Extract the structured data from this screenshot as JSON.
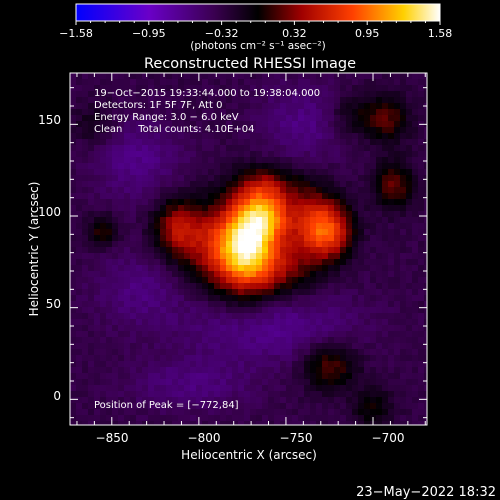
{
  "colorbar": {
    "tick_labels": [
      "−1.58",
      "−0.95",
      "−0.32",
      "0.32",
      "0.95",
      "1.58"
    ],
    "units_text": "(photons cm⁻² s⁻¹ asec⁻²)",
    "range": [
      -1.58,
      1.58
    ],
    "colors": {
      "low": "#0000ff",
      "mid_low": "#b000b0",
      "mid": "#000000",
      "mid_high": "#ff3300",
      "high_orange": "#ffb000",
      "high": "#ffffff"
    }
  },
  "title": "Reconstructed RHESSI Image",
  "info": {
    "line1": "19−Oct−2015 19:33:44.000 to 19:38:04.000",
    "line2": "Detectors: 1F 5F 7F, Att 0",
    "line3": "Energy Range: 3.0 − 6.0 keV",
    "line4": "Clean     Total counts: 4.10E+04"
  },
  "peak_text": "Position of Peak = [−772,84]",
  "footer_date": "23−May−2022 18:32",
  "chart_data": {
    "type": "heatmap",
    "title": "Reconstructed RHESSI Image",
    "xlabel": "Heliocentric X (arcsec)",
    "ylabel": "Heliocentric Y (arcsec)",
    "xlim": [
      -874,
      -669
    ],
    "ylim": [
      -14,
      178
    ],
    "x_ticks": [
      -850,
      -800,
      -750,
      -700
    ],
    "y_ticks": [
      0,
      50,
      100,
      150
    ],
    "x_tick_labels": [
      "−850",
      "−800",
      "−750",
      "−700"
    ],
    "y_tick_labels": [
      "0",
      "50",
      "100",
      "150"
    ],
    "peak": [
      -772,
      84
    ],
    "colorbar_range": [
      -1.58,
      1.58
    ],
    "sources": [
      {
        "x": -772,
        "y": 84,
        "amp": 1.58,
        "sx": 11,
        "sy": 18
      },
      {
        "x": -760,
        "y": 100,
        "amp": 0.9,
        "sx": 10,
        "sy": 10
      },
      {
        "x": -790,
        "y": 82,
        "amp": 0.7,
        "sx": 12,
        "sy": 16
      },
      {
        "x": -812,
        "y": 93,
        "amp": 0.75,
        "sx": 10,
        "sy": 12
      },
      {
        "x": -752,
        "y": 72,
        "amp": 0.55,
        "sx": 12,
        "sy": 12
      },
      {
        "x": -736,
        "y": 96,
        "amp": 0.62,
        "sx": 9,
        "sy": 15
      },
      {
        "x": -724,
        "y": 92,
        "amp": 0.95,
        "sx": 9,
        "sy": 11
      },
      {
        "x": -725,
        "y": 18,
        "amp": 0.55,
        "sx": 11,
        "sy": 9
      },
      {
        "x": -758,
        "y": 115,
        "amp": 0.3,
        "sx": 14,
        "sy": 10
      },
      {
        "x": -688,
        "y": 117,
        "amp": 0.55,
        "sx": 8,
        "sy": 9
      },
      {
        "x": -692,
        "y": 153,
        "amp": 0.5,
        "sx": 9,
        "sy": 9
      },
      {
        "x": -712,
        "y": 155,
        "amp": 0.3,
        "sx": 9,
        "sy": 8
      },
      {
        "x": -855,
        "y": 92,
        "amp": 0.45,
        "sx": 6,
        "sy": 6
      },
      {
        "x": -762,
        "y": 118,
        "amp": 0.2,
        "sx": 10,
        "sy": 6
      },
      {
        "x": -860,
        "y": 150,
        "amp": 0.25,
        "sx": 8,
        "sy": 8
      },
      {
        "x": -700,
        "y": -5,
        "amp": 0.35,
        "sx": 8,
        "sy": 8
      },
      {
        "x": -835,
        "y": 130,
        "amp": -0.3,
        "sx": 18,
        "sy": 16
      },
      {
        "x": -835,
        "y": 60,
        "amp": -0.25,
        "sx": 18,
        "sy": 15
      },
      {
        "x": -760,
        "y": 40,
        "amp": -0.35,
        "sx": 35,
        "sy": 14
      },
      {
        "x": -740,
        "y": 150,
        "amp": -0.28,
        "sx": 18,
        "sy": 16
      },
      {
        "x": -805,
        "y": 8,
        "amp": -0.25,
        "sx": 25,
        "sy": 10
      }
    ],
    "background": -0.32
  }
}
